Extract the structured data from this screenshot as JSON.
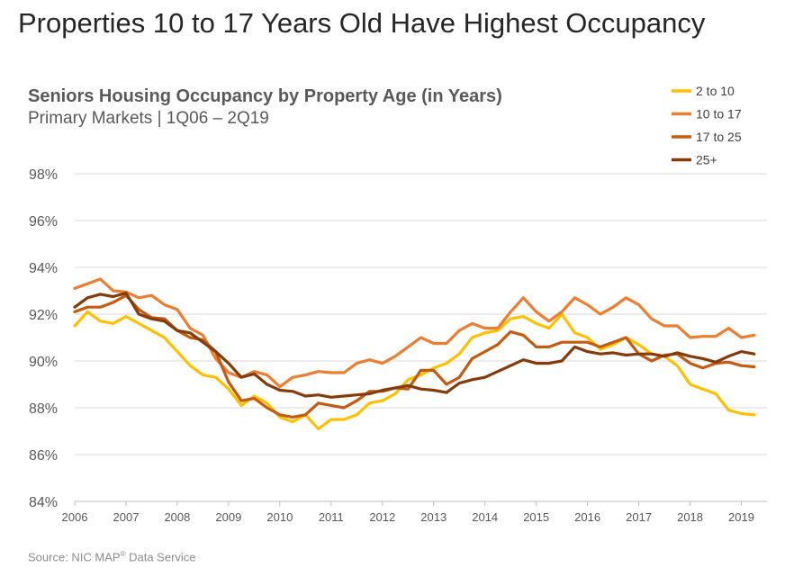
{
  "headline": "Properties 10 to 17 Years Old Have Highest Occupancy",
  "footnote": {
    "prefix": "Source: NIC MAP",
    "sup": "®",
    "suffix": " Data Service"
  },
  "colors": {
    "2 to 10": "#ffc000",
    "10 to 17": "#ed7d31",
    "17 to 25": "#c55a11",
    "25+": "#843c0c",
    "grid": "#d9d9d9",
    "axis": "#bfbfbf"
  },
  "chart_data": {
    "type": "line",
    "title": "Seniors Housing Occupancy by Property Age (in Years)",
    "subtitle": "Primary Markets | 1Q06 – 2Q19",
    "xlabel": "",
    "ylabel": "",
    "ylim": [
      84,
      98
    ],
    "y_ticks": [
      84,
      86,
      88,
      90,
      92,
      94,
      96,
      98
    ],
    "y_tick_labels": [
      "84%",
      "86%",
      "88%",
      "90%",
      "92%",
      "94%",
      "96%",
      "98%"
    ],
    "x_ticks": [
      2006,
      2007,
      2008,
      2009,
      2010,
      2011,
      2012,
      2013,
      2014,
      2015,
      2016,
      2017,
      2018,
      2019
    ],
    "x_start": 2006.0,
    "x_step": 0.25,
    "grid": true,
    "legend_position": "top-right",
    "series": [
      {
        "name": "2 to 10",
        "values": [
          91.5,
          92.1,
          91.7,
          91.6,
          91.9,
          91.6,
          91.3,
          91.0,
          90.4,
          89.8,
          89.4,
          89.3,
          88.8,
          88.1,
          88.5,
          88.2,
          87.6,
          87.4,
          87.7,
          87.1,
          87.5,
          87.5,
          87.7,
          88.2,
          88.3,
          88.6,
          89.2,
          89.4,
          89.7,
          89.9,
          90.3,
          91.0,
          91.2,
          91.3,
          91.8,
          91.9,
          91.6,
          91.4,
          92.0,
          91.2,
          91.0,
          90.5,
          90.7,
          91.0,
          90.7,
          90.3,
          90.2,
          89.8,
          89.0,
          88.8,
          88.6,
          87.9,
          87.75,
          87.7
        ]
      },
      {
        "name": "10 to 17",
        "values": [
          93.1,
          93.3,
          93.5,
          93.0,
          92.95,
          92.7,
          92.8,
          92.4,
          92.2,
          91.4,
          91.1,
          90.1,
          89.5,
          89.3,
          89.55,
          89.4,
          88.9,
          89.3,
          89.4,
          89.55,
          89.5,
          89.5,
          89.9,
          90.05,
          89.9,
          90.2,
          90.6,
          91.0,
          90.75,
          90.75,
          91.3,
          91.6,
          91.4,
          91.4,
          92.1,
          92.7,
          92.1,
          91.7,
          92.1,
          92.7,
          92.4,
          92.0,
          92.3,
          92.7,
          92.4,
          91.8,
          91.5,
          91.5,
          91.0,
          91.05,
          91.05,
          91.4,
          91.0,
          91.1
        ]
      },
      {
        "name": "17 to 25",
        "values": [
          92.1,
          92.3,
          92.3,
          92.5,
          92.8,
          92.2,
          91.85,
          91.8,
          91.3,
          91.0,
          90.9,
          90.4,
          89.1,
          88.3,
          88.4,
          88.0,
          87.7,
          87.6,
          87.7,
          88.2,
          88.1,
          88.0,
          88.3,
          88.7,
          88.7,
          88.85,
          88.8,
          89.6,
          89.6,
          89.0,
          89.3,
          90.1,
          90.4,
          90.7,
          91.25,
          91.1,
          90.6,
          90.6,
          90.8,
          90.8,
          90.8,
          90.6,
          90.8,
          91.0,
          90.3,
          90.0,
          90.25,
          90.3,
          89.9,
          89.7,
          89.9,
          89.95,
          89.8,
          89.75
        ]
      },
      {
        "name": "25+",
        "values": [
          92.3,
          92.7,
          92.85,
          92.75,
          92.9,
          92.0,
          91.8,
          91.7,
          91.3,
          91.2,
          90.8,
          90.4,
          89.9,
          89.3,
          89.45,
          89.0,
          88.75,
          88.7,
          88.5,
          88.55,
          88.45,
          88.5,
          88.55,
          88.6,
          88.75,
          88.85,
          88.95,
          88.8,
          88.75,
          88.65,
          89.05,
          89.2,
          89.3,
          89.55,
          89.8,
          90.05,
          89.9,
          89.9,
          90.0,
          90.6,
          90.4,
          90.3,
          90.35,
          90.25,
          90.3,
          90.3,
          90.2,
          90.35,
          90.2,
          90.1,
          89.95,
          90.2,
          90.4,
          90.3
        ]
      }
    ]
  }
}
